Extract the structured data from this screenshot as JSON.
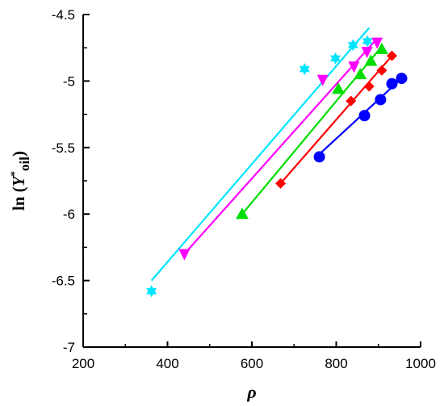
{
  "chart_data": {
    "type": "scatter",
    "xlabel": "ρ",
    "ylabel": {
      "prefix": "ln (",
      "main": "Y",
      "superscript": "*",
      "subscript": "oil",
      "suffix": ")"
    },
    "xlim": [
      200,
      1000
    ],
    "ylim": [
      -7,
      -4.5
    ],
    "xticks": [
      200,
      400,
      600,
      800,
      1000
    ],
    "yticks": [
      -7,
      -6.5,
      -6,
      -5.5,
      -5,
      -4.5
    ],
    "xtick_labels": [
      "200",
      "400",
      "600",
      "800",
      "1000"
    ],
    "ytick_labels": [
      "-7",
      "-6.5",
      "-6",
      "-5.5",
      "-5",
      "-4.5"
    ],
    "grid": false,
    "series": [
      {
        "color": "#0000ff",
        "marker": "circle",
        "points": [
          [
            760,
            -5.57
          ],
          [
            867,
            -5.26
          ],
          [
            905,
            -5.14
          ],
          [
            932,
            -5.02
          ],
          [
            955,
            -4.98
          ]
        ],
        "fit": [
          [
            760,
            -5.55
          ],
          [
            955,
            -4.98
          ]
        ]
      },
      {
        "color": "#ff0000",
        "marker": "diamond",
        "points": [
          [
            668,
            -5.77
          ],
          [
            835,
            -5.15
          ],
          [
            878,
            -5.04
          ],
          [
            908,
            -4.92
          ],
          [
            932,
            -4.81
          ]
        ],
        "fit": [
          [
            668,
            -5.77
          ],
          [
            935,
            -4.8
          ]
        ]
      },
      {
        "color": "#00dd00",
        "marker": "triangle-up",
        "points": [
          [
            577,
            -6.0
          ],
          [
            805,
            -5.06
          ],
          [
            857,
            -4.95
          ],
          [
            882,
            -4.85
          ],
          [
            908,
            -4.76
          ]
        ],
        "fit": [
          [
            577,
            -6.0
          ],
          [
            908,
            -4.74
          ]
        ]
      },
      {
        "color": "#ff00ff",
        "marker": "triangle-down",
        "points": [
          [
            440,
            -6.3
          ],
          [
            768,
            -4.99
          ],
          [
            842,
            -4.89
          ],
          [
            873,
            -4.78
          ],
          [
            897,
            -4.71
          ]
        ],
        "fit": [
          [
            440,
            -6.3
          ],
          [
            897,
            -4.68
          ]
        ]
      },
      {
        "color": "#00e5ff",
        "marker": "star",
        "points": [
          [
            362,
            -6.58
          ],
          [
            725,
            -4.91
          ],
          [
            798,
            -4.83
          ],
          [
            840,
            -4.73
          ],
          [
            874,
            -4.7
          ]
        ],
        "fit": [
          [
            362,
            -6.5
          ],
          [
            878,
            -4.6
          ]
        ]
      }
    ]
  }
}
